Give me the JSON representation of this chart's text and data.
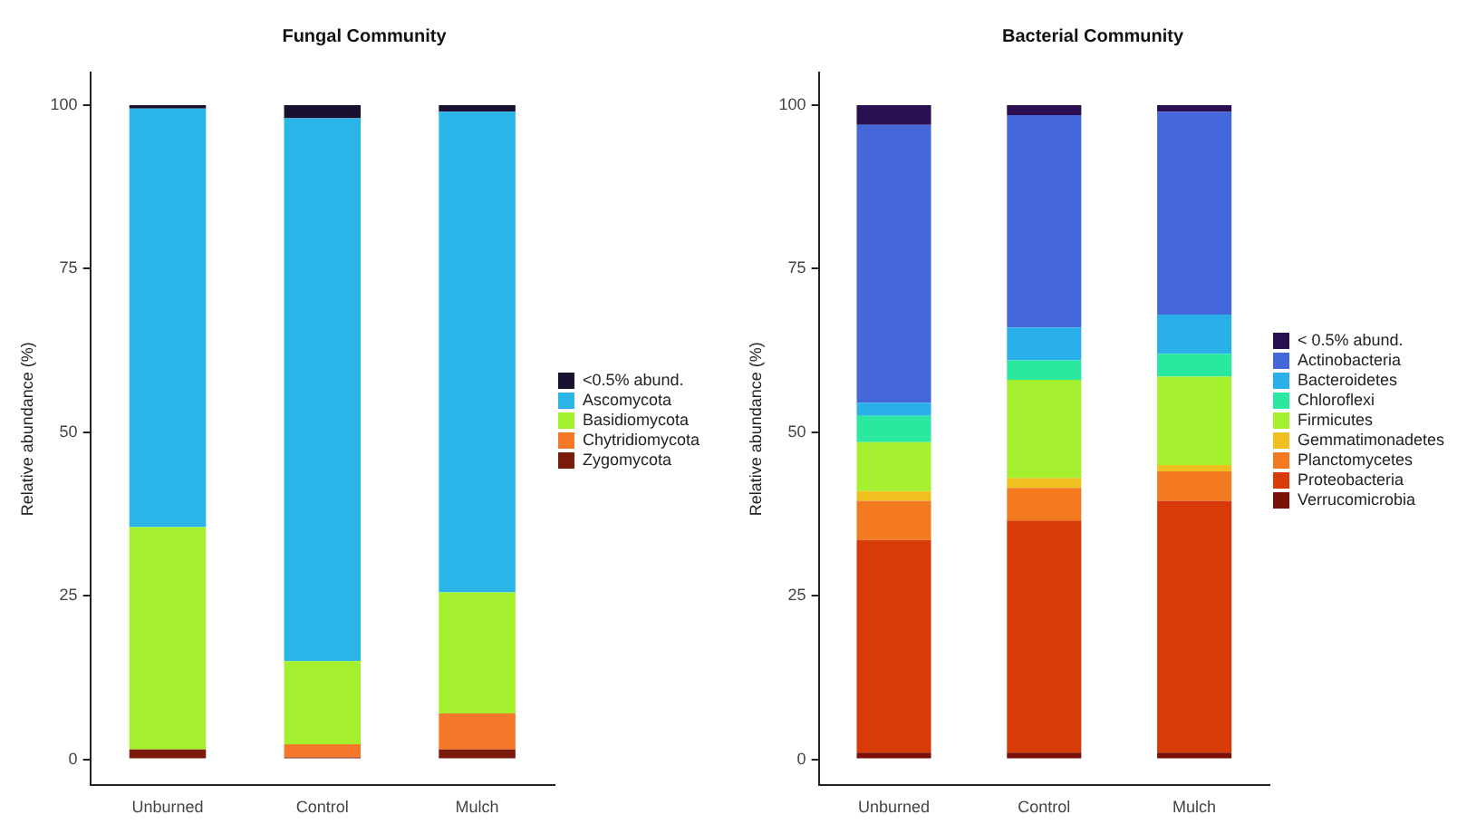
{
  "chart_data": [
    {
      "type": "bar",
      "title": "Fungal Community",
      "ylabel": "Relative abundance (%)",
      "categories": [
        "Unburned",
        "Control",
        "Mulch"
      ],
      "stacked": true,
      "ylim": [
        -4,
        105
      ],
      "yticks": [
        0,
        25,
        50,
        75,
        100
      ],
      "grid": false,
      "legend": "right",
      "series": [
        {
          "name": "Zygomycota",
          "color": "#7a1a0a",
          "values": [
            1.5,
            0.3,
            1.5
          ]
        },
        {
          "name": "Chytridiomycota",
          "color": "#f4772a",
          "values": [
            0,
            2,
            5.5
          ]
        },
        {
          "name": "Basidiomycota",
          "color": "#a4f02e",
          "values": [
            34,
            12.7,
            18.5
          ]
        },
        {
          "name": "Ascomycota",
          "color": "#29b5e8",
          "values": [
            64,
            83,
            73.5
          ]
        },
        {
          "name": "<0.5% abund.",
          "color": "#1a1030",
          "values": [
            0.5,
            2,
            1
          ]
        }
      ]
    },
    {
      "type": "bar",
      "title": "Bacterial Community",
      "ylabel": "Relative abundance (%)",
      "categories": [
        "Unburned",
        "Control",
        "Mulch"
      ],
      "stacked": true,
      "ylim": [
        -4,
        105
      ],
      "yticks": [
        0,
        25,
        50,
        75,
        100
      ],
      "grid": false,
      "legend": "right",
      "series": [
        {
          "name": "Verrucomicrobia",
          "color": "#7a1008",
          "values": [
            1,
            1,
            1
          ]
        },
        {
          "name": "Proteobacteria",
          "color": "#d83a08",
          "values": [
            32.5,
            35.5,
            38.5
          ]
        },
        {
          "name": "Planctomycetes",
          "color": "#f47a20",
          "values": [
            6,
            5,
            4.5
          ]
        },
        {
          "name": "Gemmatimonadetes",
          "color": "#f0c020",
          "values": [
            1.5,
            1.5,
            1
          ]
        },
        {
          "name": "Firmicutes",
          "color": "#a4f02e",
          "values": [
            7.5,
            15,
            13.5
          ]
        },
        {
          "name": "Chloroflexi",
          "color": "#2ae8a0",
          "values": [
            4,
            3,
            3.5
          ]
        },
        {
          "name": "Bacteroidetes",
          "color": "#2ab0e8",
          "values": [
            2,
            5,
            6
          ]
        },
        {
          "name": "Actinobacteria",
          "color": "#4468dc",
          "values": [
            42.5,
            32.5,
            31
          ]
        },
        {
          "name": "< 0.5% abund.",
          "color": "#2a1050",
          "values": [
            3,
            1.5,
            1
          ]
        }
      ]
    }
  ]
}
